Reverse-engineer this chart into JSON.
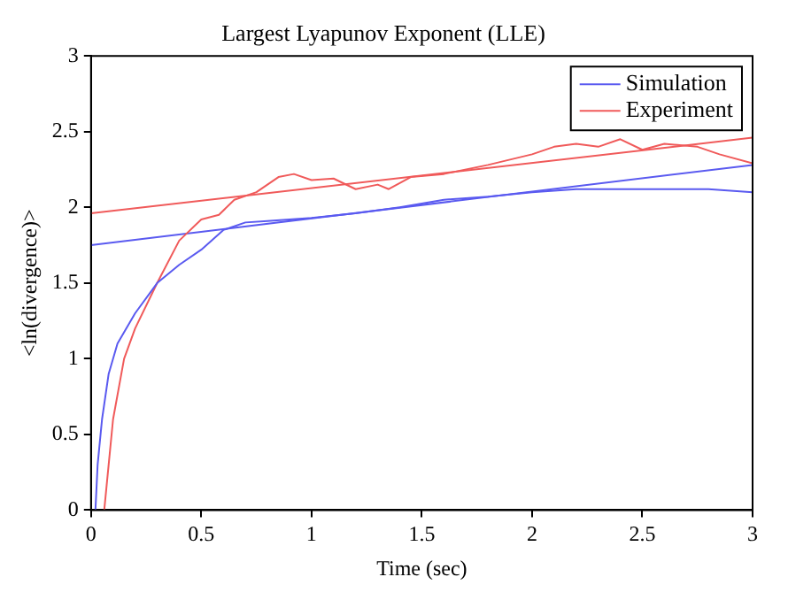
{
  "chart_data": {
    "type": "line",
    "title": "Largest Lyapunov Exponent (LLE)",
    "xlabel": "Time (sec)",
    "ylabel": "<ln(divergence)>",
    "xlim": [
      0,
      3
    ],
    "xticks": [
      0,
      0.5,
      1,
      1.5,
      2,
      2.5,
      3
    ],
    "ylim": [
      0,
      3
    ],
    "yticks": [
      0,
      0.5,
      1,
      1.5,
      2,
      2.5,
      3
    ],
    "grid": false,
    "legend": "top right",
    "marker": "none",
    "line_style": "solid",
    "series": [
      {
        "name": "Simulation",
        "color": "#5a5af0",
        "x": [
          0.02,
          0.03,
          0.05,
          0.08,
          0.12,
          0.2,
          0.3,
          0.4,
          0.5,
          0.6,
          0.7,
          0.8,
          1.0,
          1.2,
          1.4,
          1.6,
          1.8,
          2.0,
          2.2,
          2.4,
          2.6,
          2.8,
          3.0
        ],
        "values": [
          0,
          0.3,
          0.6,
          0.9,
          1.1,
          1.3,
          1.5,
          1.62,
          1.72,
          1.85,
          1.9,
          1.91,
          1.93,
          1.96,
          2.0,
          2.05,
          2.07,
          2.1,
          2.12,
          2.12,
          2.12,
          2.12,
          2.1
        ]
      },
      {
        "name": "Experiment",
        "color": "#f05a5a",
        "x": [
          0.06,
          0.1,
          0.15,
          0.2,
          0.3,
          0.4,
          0.5,
          0.58,
          0.65,
          0.75,
          0.85,
          0.92,
          1.0,
          1.1,
          1.2,
          1.3,
          1.35,
          1.45,
          1.6,
          1.8,
          2.0,
          2.1,
          2.2,
          2.3,
          2.4,
          2.5,
          2.6,
          2.75,
          2.85,
          3.0
        ],
        "values": [
          0,
          0.6,
          1.0,
          1.2,
          1.5,
          1.78,
          1.92,
          1.95,
          2.05,
          2.1,
          2.2,
          2.22,
          2.18,
          2.19,
          2.12,
          2.15,
          2.12,
          2.2,
          2.22,
          2.28,
          2.35,
          2.4,
          2.42,
          2.4,
          2.45,
          2.38,
          2.42,
          2.4,
          2.35,
          2.29
        ]
      },
      {
        "color": "#5a5af0",
        "x": [
          0,
          3
        ],
        "values": [
          1.75,
          2.28
        ]
      },
      {
        "color": "#f05a5a",
        "x": [
          0,
          3
        ],
        "values": [
          1.96,
          2.46
        ]
      }
    ]
  }
}
